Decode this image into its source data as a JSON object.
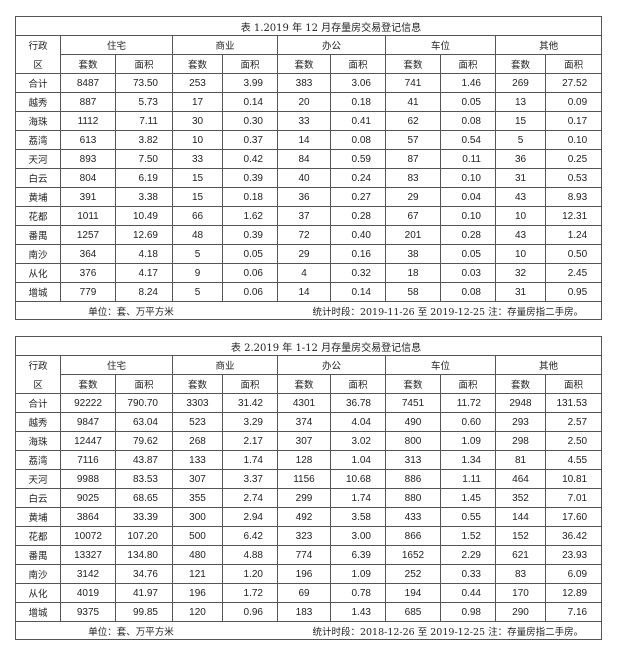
{
  "table_headers": {
    "district_label_top": "行政",
    "district_label_bottom": "区",
    "categories": [
      "住宅",
      "商业",
      "办公",
      "车位",
      "其他"
    ],
    "count_label": "套数",
    "area_label": "面积"
  },
  "tables": [
    {
      "title": "表 1.2019 年 12 月存量房交易登记信息",
      "unit": "单位：套、万平方米",
      "period_label": "统计时段：",
      "period": "2019-11-26 至 2019-12-25",
      "note": "注：存量房指二手房。",
      "rows": [
        [
          "合计",
          "8487",
          "73.50",
          "253",
          "3.99",
          "383",
          "3.06",
          "741",
          "1.46",
          "269",
          "27.52"
        ],
        [
          "越秀",
          "887",
          "5.73",
          "17",
          "0.14",
          "20",
          "0.18",
          "41",
          "0.05",
          "13",
          "0.09"
        ],
        [
          "海珠",
          "1112",
          "7.11",
          "30",
          "0.30",
          "33",
          "0.41",
          "62",
          "0.08",
          "15",
          "0.17"
        ],
        [
          "荔湾",
          "613",
          "3.82",
          "10",
          "0.37",
          "14",
          "0.08",
          "57",
          "0.54",
          "5",
          "0.10"
        ],
        [
          "天河",
          "893",
          "7.50",
          "33",
          "0.42",
          "84",
          "0.59",
          "87",
          "0.11",
          "36",
          "0.25"
        ],
        [
          "白云",
          "804",
          "6.19",
          "15",
          "0.39",
          "40",
          "0.24",
          "83",
          "0.10",
          "31",
          "0.53"
        ],
        [
          "黄埔",
          "391",
          "3.38",
          "15",
          "0.18",
          "36",
          "0.27",
          "29",
          "0.04",
          "43",
          "8.93"
        ],
        [
          "花都",
          "1011",
          "10.49",
          "66",
          "1.62",
          "37",
          "0.28",
          "67",
          "0.10",
          "10",
          "12.31"
        ],
        [
          "番禺",
          "1257",
          "12.69",
          "48",
          "0.39",
          "72",
          "0.40",
          "201",
          "0.28",
          "43",
          "1.24"
        ],
        [
          "南沙",
          "364",
          "4.18",
          "5",
          "0.05",
          "29",
          "0.16",
          "38",
          "0.05",
          "10",
          "0.50"
        ],
        [
          "从化",
          "376",
          "4.17",
          "9",
          "0.06",
          "4",
          "0.32",
          "18",
          "0.03",
          "32",
          "2.45"
        ],
        [
          "增城",
          "779",
          "8.24",
          "5",
          "0.06",
          "14",
          "0.14",
          "58",
          "0.08",
          "31",
          "0.95"
        ]
      ]
    },
    {
      "title": "表 2.2019 年 1-12 月存量房交易登记信息",
      "unit": "单位：套、万平方米",
      "period_label": "统计时段：",
      "period": "2018-12-26 至 2019-12-25",
      "note": "注：存量房指二手房。",
      "rows": [
        [
          "合计",
          "92222",
          "790.70",
          "3303",
          "31.42",
          "4301",
          "36.78",
          "7451",
          "11.72",
          "2948",
          "131.53"
        ],
        [
          "越秀",
          "9847",
          "63.04",
          "523",
          "3.29",
          "374",
          "4.04",
          "490",
          "0.60",
          "293",
          "2.57"
        ],
        [
          "海珠",
          "12447",
          "79.62",
          "268",
          "2.17",
          "307",
          "3.02",
          "800",
          "1.09",
          "298",
          "2.50"
        ],
        [
          "荔湾",
          "7116",
          "43.87",
          "133",
          "1.74",
          "128",
          "1.04",
          "313",
          "1.34",
          "81",
          "4.55"
        ],
        [
          "天河",
          "9988",
          "83.53",
          "307",
          "3.37",
          "1156",
          "10.68",
          "886",
          "1.11",
          "464",
          "10.81"
        ],
        [
          "白云",
          "9025",
          "68.65",
          "355",
          "2.74",
          "299",
          "1.74",
          "880",
          "1.45",
          "352",
          "7.01"
        ],
        [
          "黄埔",
          "3864",
          "33.39",
          "300",
          "2.94",
          "492",
          "3.58",
          "433",
          "0.55",
          "144",
          "17.60"
        ],
        [
          "花都",
          "10072",
          "107.20",
          "500",
          "6.42",
          "323",
          "3.00",
          "866",
          "1.52",
          "152",
          "36.42"
        ],
        [
          "番禺",
          "13327",
          "134.80",
          "480",
          "4.88",
          "774",
          "6.39",
          "1652",
          "2.29",
          "621",
          "23.93"
        ],
        [
          "南沙",
          "3142",
          "34.76",
          "121",
          "1.20",
          "196",
          "1.09",
          "252",
          "0.33",
          "83",
          "6.09"
        ],
        [
          "从化",
          "4019",
          "41.97",
          "196",
          "1.72",
          "69",
          "0.78",
          "194",
          "0.44",
          "170",
          "12.89"
        ],
        [
          "增城",
          "9375",
          "99.85",
          "120",
          "0.96",
          "183",
          "1.43",
          "685",
          "0.98",
          "290",
          "7.16"
        ]
      ]
    }
  ]
}
